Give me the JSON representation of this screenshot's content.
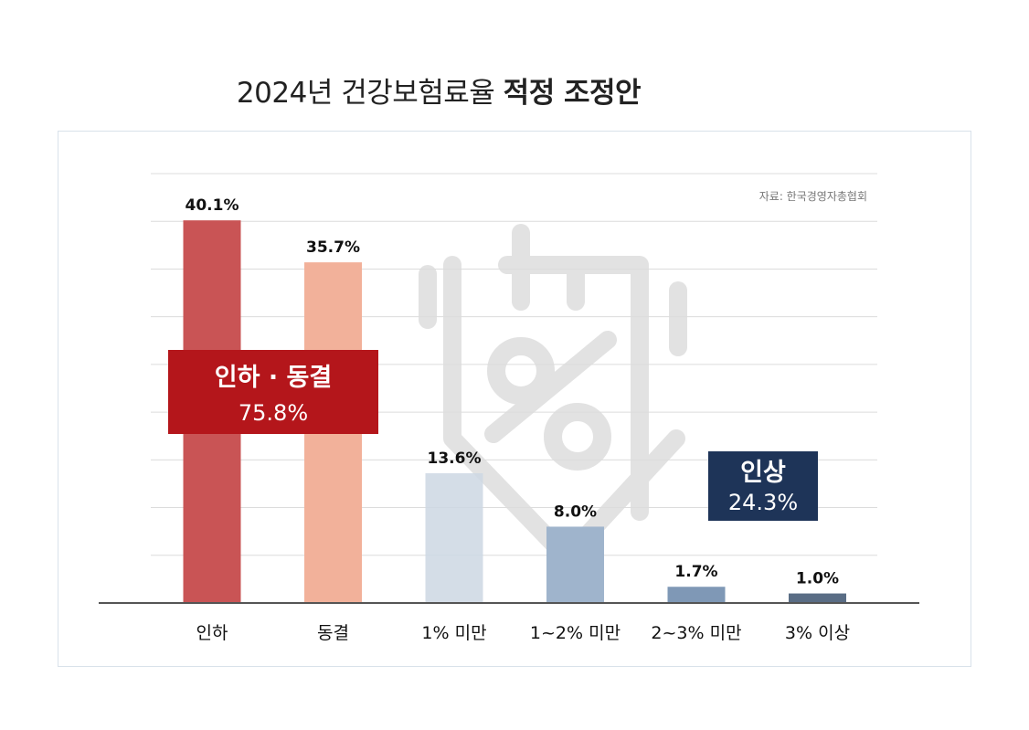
{
  "title": {
    "plain": "2024년 건강보험료율",
    "bold": "적정 조정안"
  },
  "source": "자료: 한국경영자총협회",
  "chart_data": {
    "type": "bar",
    "categories": [
      "인하",
      "동결",
      "1% 미만",
      "1~2% 미만",
      "2~3% 미만",
      "3% 이상"
    ],
    "values": [
      40.1,
      35.7,
      13.6,
      8.0,
      1.7,
      1.0
    ],
    "value_labels": [
      "40.1%",
      "35.7%",
      "13.6%",
      "8.0%",
      "1.7%",
      "1.0%"
    ],
    "bar_colors": [
      "#c95455",
      "#f2b19a",
      "#cdd7e3",
      "#9fb4cc",
      "#7f98b6",
      "#5a6d85"
    ],
    "ylim": [
      0,
      45
    ],
    "grid": true,
    "annotations": [
      {
        "line1": "인하 · 동결",
        "line2": "75.8%",
        "color": "#b4161b"
      },
      {
        "line1": "인상",
        "line2": "24.3%",
        "color": "#1e3458"
      }
    ]
  }
}
